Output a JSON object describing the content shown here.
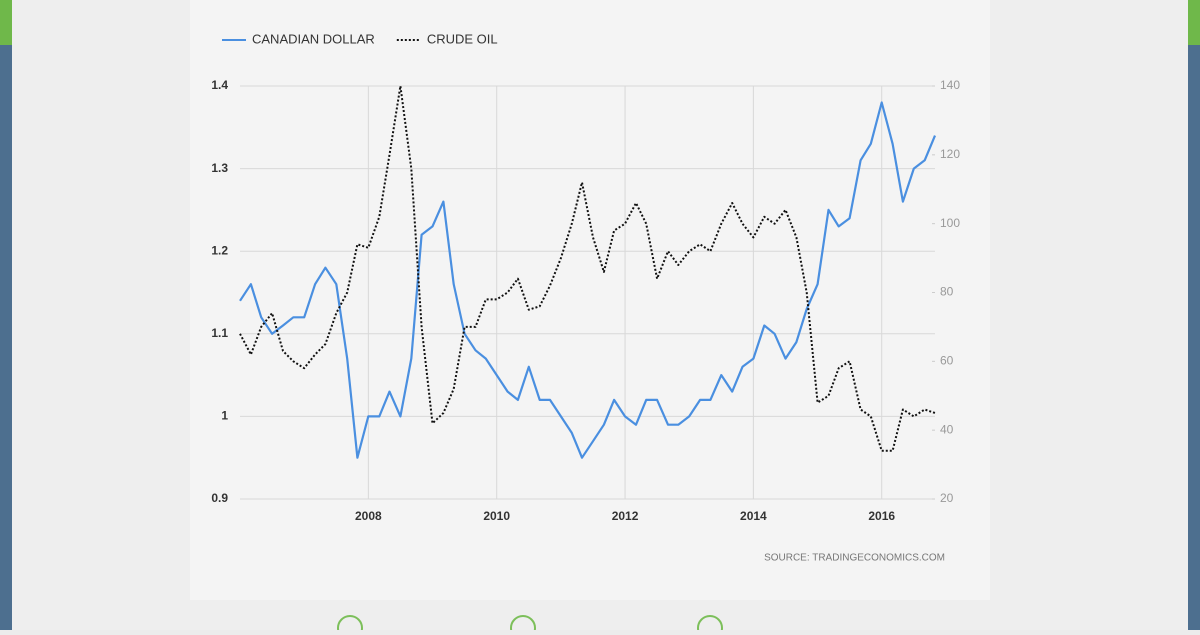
{
  "chart_data": {
    "type": "line",
    "x": [
      2006,
      2006.17,
      2006.33,
      2006.5,
      2006.67,
      2006.83,
      2007,
      2007.17,
      2007.33,
      2007.5,
      2007.67,
      2007.83,
      2008,
      2008.17,
      2008.33,
      2008.5,
      2008.67,
      2008.83,
      2009,
      2009.17,
      2009.33,
      2009.5,
      2009.67,
      2009.83,
      2010,
      2010.17,
      2010.33,
      2010.5,
      2010.67,
      2010.83,
      2011,
      2011.17,
      2011.33,
      2011.5,
      2011.67,
      2011.83,
      2012,
      2012.17,
      2012.33,
      2012.5,
      2012.67,
      2012.83,
      2013,
      2013.17,
      2013.33,
      2013.5,
      2013.67,
      2013.83,
      2014,
      2014.17,
      2014.33,
      2014.5,
      2014.67,
      2014.83,
      2015,
      2015.17,
      2015.33,
      2015.5,
      2015.67,
      2015.83,
      2016,
      2016.17,
      2016.33,
      2016.5,
      2016.67,
      2016.83
    ],
    "series": [
      {
        "name": "CANADIAN DOLLAR",
        "color": "#4a8fe0",
        "style": "solid",
        "values": [
          1.14,
          1.16,
          1.12,
          1.1,
          1.11,
          1.12,
          1.12,
          1.16,
          1.18,
          1.16,
          1.07,
          0.95,
          1.0,
          1.0,
          1.03,
          1.0,
          1.07,
          1.22,
          1.23,
          1.26,
          1.16,
          1.1,
          1.08,
          1.07,
          1.05,
          1.03,
          1.02,
          1.06,
          1.02,
          1.02,
          1.0,
          0.98,
          0.95,
          0.97,
          0.99,
          1.02,
          1.0,
          0.99,
          1.02,
          1.02,
          0.99,
          0.99,
          1.0,
          1.02,
          1.02,
          1.05,
          1.03,
          1.06,
          1.07,
          1.11,
          1.1,
          1.07,
          1.09,
          1.13,
          1.16,
          1.25,
          1.23,
          1.24,
          1.31,
          1.33,
          1.38,
          1.33,
          1.26,
          1.3,
          1.31,
          1.34
        ]
      },
      {
        "name": "CRUDE OIL",
        "color": "#111111",
        "style": "dotted",
        "axis": "y2",
        "values": [
          68,
          62,
          70,
          74,
          63,
          60,
          58,
          62,
          65,
          74,
          80,
          94,
          93,
          102,
          120,
          140,
          116,
          70,
          42,
          45,
          52,
          70,
          70,
          78,
          78,
          80,
          84,
          75,
          76,
          82,
          90,
          100,
          112,
          96,
          86,
          98,
          100,
          106,
          100,
          84,
          92,
          88,
          92,
          94,
          92,
          100,
          106,
          100,
          96,
          102,
          100,
          104,
          96,
          80,
          48,
          50,
          58,
          60,
          46,
          44,
          34,
          34,
          46,
          44,
          46,
          45
        ]
      }
    ],
    "xlim": [
      2006,
      2016.83
    ],
    "xticks": [
      2008,
      2010,
      2012,
      2014,
      2016
    ],
    "ylim": [
      0.9,
      1.4
    ],
    "yticks": [
      0.9,
      1,
      1.1,
      1.2,
      1.3,
      1.4
    ],
    "y2lim": [
      20,
      140
    ],
    "y2ticks": [
      20,
      40,
      60,
      80,
      100,
      120,
      140
    ],
    "grid": true,
    "source": "SOURCE: TRADINGECONOMICS.COM"
  }
}
